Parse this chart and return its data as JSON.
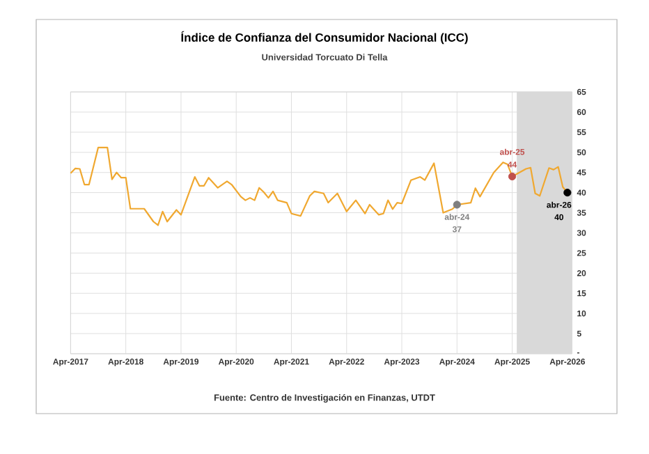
{
  "chart_data": {
    "type": "line",
    "title": "Índice de Confianza del Consumidor Nacional (ICC)",
    "subtitle": "Universidad Torcuato Di Tella",
    "xlim": [
      "2017-04",
      "2026-05"
    ],
    "xticks": [
      {
        "value": "2017-04",
        "label": "Apr-2017"
      },
      {
        "value": "2018-04",
        "label": "Apr-2018"
      },
      {
        "value": "2019-04",
        "label": "Apr-2019"
      },
      {
        "value": "2020-04",
        "label": "Apr-2020"
      },
      {
        "value": "2021-04",
        "label": "Apr-2021"
      },
      {
        "value": "2022-04",
        "label": "Apr-2022"
      },
      {
        "value": "2023-04",
        "label": "Apr-2023"
      },
      {
        "value": "2024-04",
        "label": "Apr-2024"
      },
      {
        "value": "2025-04",
        "label": "Apr-2025"
      },
      {
        "value": "2026-04",
        "label": "Apr-2026"
      }
    ],
    "ylim": [
      0,
      65
    ],
    "yticks": [
      {
        "value": 0,
        "label": "-"
      },
      5,
      10,
      15,
      20,
      25,
      30,
      35,
      40,
      45,
      50,
      55,
      60,
      65
    ],
    "grid": true,
    "bands": [
      {
        "axis": "x",
        "from": "2025-05",
        "to": "2026-05",
        "color": "#d9d9d9"
      }
    ],
    "series": [
      {
        "color": "#f0a830",
        "marker": "none",
        "x": [
          "2017-04",
          "2017-05",
          "2017-06",
          "2017-07",
          "2017-08",
          "2017-10",
          "2017-12",
          "2018-01",
          "2018-02",
          "2018-03",
          "2018-04",
          "2018-05",
          "2018-08",
          "2018-10",
          "2018-11",
          "2018-12",
          "2019-01",
          "2019-03",
          "2019-04",
          "2019-07",
          "2019-08",
          "2019-09",
          "2019-10",
          "2019-12",
          "2020-02",
          "2020-03",
          "2020-05",
          "2020-06",
          "2020-07",
          "2020-08",
          "2020-09",
          "2020-10",
          "2020-11",
          "2020-12",
          "2021-01",
          "2021-03",
          "2021-04",
          "2021-06",
          "2021-08",
          "2021-09",
          "2021-11",
          "2021-12",
          "2022-02",
          "2022-04",
          "2022-06",
          "2022-08",
          "2022-09",
          "2022-11",
          "2022-12",
          "2023-01",
          "2023-02",
          "2023-03",
          "2023-04",
          "2023-06",
          "2023-08",
          "2023-09",
          "2023-11",
          "2024-01",
          "2024-03",
          "2024-04",
          "2024-07",
          "2024-08",
          "2024-09",
          "2024-12",
          "2025-02",
          "2025-03",
          "2025-04",
          "2025-07",
          "2025-08",
          "2025-09",
          "2025-10",
          "2025-12",
          "2026-01",
          "2026-02",
          "2026-03",
          "2026-04"
        ],
        "values": [
          44.8,
          46,
          45.9,
          42,
          42,
          51.2,
          51.2,
          43.3,
          45,
          43.7,
          43.7,
          36,
          36,
          32.8,
          31.9,
          35.3,
          32.8,
          35.7,
          34.5,
          43.9,
          41.7,
          41.7,
          43.7,
          41.2,
          42.8,
          42,
          39,
          38.1,
          38.7,
          38.1,
          41.2,
          40.1,
          38.7,
          40.3,
          38.1,
          37.5,
          34.8,
          34.2,
          39.2,
          40.3,
          39.8,
          37.5,
          39.8,
          35.3,
          38.1,
          34.8,
          37,
          34.5,
          34.8,
          38.1,
          35.9,
          37.5,
          37.3,
          43.1,
          43.9,
          43.1,
          47.3,
          35,
          35.9,
          37,
          37.5,
          41.1,
          39,
          45,
          47.5,
          47,
          44,
          45.9,
          46.2,
          39.8,
          39.2,
          46.1,
          45.7,
          46.4,
          41.4,
          40
        ]
      },
      {
        "type": "scatter",
        "marker": "circle",
        "x": [
          "2024-04",
          "2025-04",
          "2026-04"
        ],
        "values": [
          37,
          44,
          40
        ],
        "colors": [
          "#7f7f7f",
          "#c0504d",
          "#000000"
        ],
        "value_labels": [
          "37",
          "44",
          "40"
        ]
      }
    ],
    "annotations": [
      "Fuente: Centro de Investigación en Finanzas, UTDT",
      {
        "text": "abr-24",
        "x": "2024-04",
        "y": 37
      },
      {
        "text": "abr-25",
        "x": "2025-04",
        "y": 44
      },
      {
        "text": "abr-26",
        "x": "2026-04",
        "y": 40
      }
    ]
  }
}
